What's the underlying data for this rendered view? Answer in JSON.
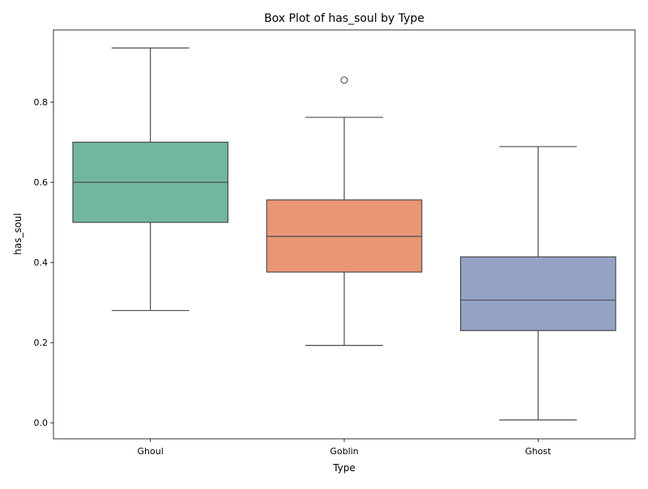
{
  "chart_data": {
    "type": "box",
    "title": "Box Plot of has_soul by Type",
    "xlabel": "Type",
    "ylabel": "has_soul",
    "ylim": [
      -0.04,
      0.98
    ],
    "yticks": [
      "0.0",
      "0.2",
      "0.4",
      "0.6",
      "0.8"
    ],
    "ytick_values": [
      0.0,
      0.2,
      0.4,
      0.6,
      0.8
    ],
    "grid": false,
    "categories": [
      "Ghoul",
      "Goblin",
      "Ghost"
    ],
    "boxes": [
      {
        "category": "Ghoul",
        "whisker_low": 0.28,
        "q1": 0.5,
        "median": 0.6,
        "q3": 0.7,
        "whisker_high": 0.935,
        "outliers": [],
        "color": "#73b6a0"
      },
      {
        "category": "Goblin",
        "whisker_low": 0.193,
        "q1": 0.376,
        "median": 0.465,
        "q3": 0.556,
        "whisker_high": 0.762,
        "outliers": [
          0.855
        ],
        "color": "#e99674"
      },
      {
        "category": "Ghost",
        "whisker_low": 0.007,
        "q1": 0.23,
        "median": 0.306,
        "q3": 0.414,
        "whisker_high": 0.689,
        "outliers": [],
        "color": "#94a2c6"
      }
    ],
    "line_color": "#4d4d4d"
  }
}
